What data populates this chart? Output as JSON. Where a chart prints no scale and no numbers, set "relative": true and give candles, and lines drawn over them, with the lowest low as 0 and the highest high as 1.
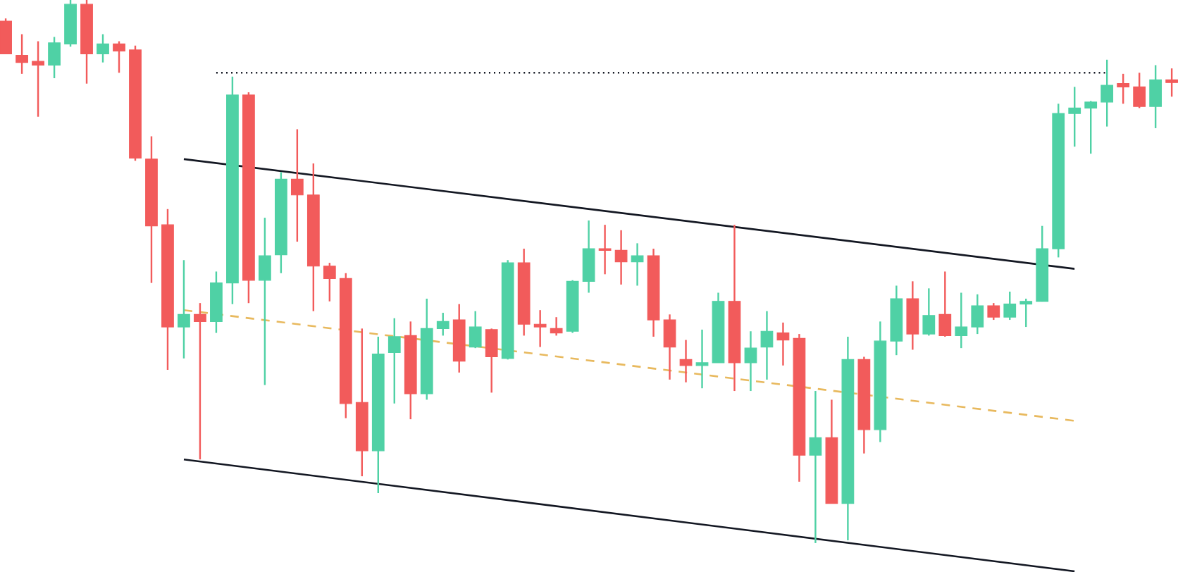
{
  "chart_data": {
    "type": "candlestick",
    "relative": true,
    "categories": [
      null,
      null,
      null,
      null,
      null,
      null,
      null,
      null,
      null,
      null,
      null,
      null,
      null,
      null,
      null,
      null,
      null,
      null,
      null,
      null,
      null,
      null,
      null,
      null,
      null,
      null,
      null,
      null,
      null,
      null,
      null,
      null,
      null,
      null,
      null,
      null,
      null,
      null,
      null,
      null,
      null,
      null,
      null,
      null,
      null,
      null,
      null,
      null,
      null,
      null,
      null,
      null,
      null,
      null,
      null,
      null,
      null,
      null,
      null,
      null,
      null,
      null,
      null,
      null,
      null,
      null,
      null,
      null,
      null,
      null,
      null,
      null,
      null
    ],
    "ohlc": [
      [
        0.961,
        0.966,
        0.901,
        0.901
      ],
      [
        0.898,
        0.937,
        0.864,
        0.885
      ],
      [
        0.887,
        0.924,
        0.785,
        0.88
      ],
      [
        0.88,
        0.932,
        0.856,
        0.921
      ],
      [
        0.919,
        1,
        0.914,
        0.992
      ],
      [
        0.992,
        1,
        0.846,
        0.901
      ],
      [
        0.901,
        0.937,
        0.885,
        0.919
      ],
      [
        0.919,
        0.924,
        0.866,
        0.906
      ],
      [
        0.908,
        0.916,
        0.704,
        0.709
      ],
      [
        0.707,
        0.749,
        0.479,
        0.584
      ],
      [
        0.586,
        0.615,
        0.319,
        0.398
      ],
      [
        0.398,
        0.521,
        0.34,
        0.421
      ],
      [
        0.421,
        0.442,
        0.154,
        0.408
      ],
      [
        0.408,
        0.5,
        0.387,
        0.479
      ],
      [
        0.479,
        0.859,
        0.44,
        0.825
      ],
      [
        0.825,
        0.83,
        0.442,
        0.484
      ],
      [
        0.484,
        0.599,
        0.291,
        0.529
      ],
      [
        0.531,
        0.683,
        0.497,
        0.67
      ],
      [
        0.67,
        0.762,
        0.555,
        0.641
      ],
      [
        0.641,
        0.699,
        0.427,
        0.51
      ],
      [
        0.51,
        0.516,
        0.445,
        0.487
      ],
      [
        0.487,
        0.497,
        0.23,
        0.257
      ],
      [
        0.259,
        0.395,
        0.123,
        0.17
      ],
      [
        0.17,
        0.38,
        0.092,
        0.348
      ],
      [
        0.351,
        0.414,
        0.257,
        0.38
      ],
      [
        0.382,
        0.408,
        0.228,
        0.275
      ],
      [
        0.275,
        0.45,
        0.264,
        0.395
      ],
      [
        0.395,
        0.424,
        0.382,
        0.408
      ],
      [
        0.411,
        0.44,
        0.314,
        0.335
      ],
      [
        0.361,
        0.427,
        0.359,
        0.398
      ],
      [
        0.393,
        0.395,
        0.277,
        0.343
      ],
      [
        0.34,
        0.521,
        0.338,
        0.516
      ],
      [
        0.516,
        0.542,
        0.382,
        0.403
      ],
      [
        0.403,
        0.429,
        0.361,
        0.398
      ],
      [
        0.395,
        0.416,
        0.382,
        0.387
      ],
      [
        0.39,
        0.484,
        0.387,
        0.482
      ],
      [
        0.482,
        0.594,
        0.461,
        0.542
      ],
      [
        0.542,
        0.586,
        0.495,
        0.539
      ],
      [
        0.539,
        0.576,
        0.476,
        0.518
      ],
      [
        0.518,
        0.552,
        0.474,
        0.529
      ],
      [
        0.529,
        0.542,
        0.38,
        0.411
      ],
      [
        0.411,
        0.421,
        0.301,
        0.361
      ],
      [
        0.338,
        0.374,
        0.296,
        0.327
      ],
      [
        0.327,
        0.393,
        0.285,
        0.332
      ],
      [
        0.332,
        0.461,
        0.332,
        0.445
      ],
      [
        0.445,
        0.586,
        0.28,
        0.332
      ],
      [
        0.332,
        0.39,
        0.28,
        0.359
      ],
      [
        0.361,
        0.427,
        0.301,
        0.39
      ],
      [
        0.387,
        0.406,
        0.327,
        0.374
      ],
      [
        0.377,
        0.385,
        0.113,
        0.162
      ],
      [
        0.162,
        0.28,
        0,
        0.194
      ],
      [
        0.194,
        0.264,
        0.073,
        0.073
      ],
      [
        0.073,
        0.38,
        0.005,
        0.338
      ],
      [
        0.338,
        0.343,
        0.165,
        0.209
      ],
      [
        0.209,
        0.408,
        0.186,
        0.372
      ],
      [
        0.372,
        0.474,
        0.346,
        0.45
      ],
      [
        0.45,
        0.482,
        0.356,
        0.385
      ],
      [
        0.385,
        0.469,
        0.382,
        0.419
      ],
      [
        0.421,
        0.5,
        0.38,
        0.382
      ],
      [
        0.382,
        0.461,
        0.359,
        0.398
      ],
      [
        0.398,
        0.458,
        0.385,
        0.437
      ],
      [
        0.437,
        0.442,
        0.411,
        0.416
      ],
      [
        0.416,
        0.463,
        0.411,
        0.44
      ],
      [
        0.44,
        0.45,
        0.398,
        0.445
      ],
      [
        0.445,
        0.584,
        0.445,
        0.542
      ],
      [
        0.542,
        0.809,
        0.526,
        0.791
      ],
      [
        0.791,
        0.84,
        0.73,
        0.801
      ],
      [
        0.801,
        0.814,
        0.717,
        0.812
      ],
      [
        0.812,
        0.89,
        0.767,
        0.843
      ],
      [
        0.846,
        0.864,
        0.809,
        0.84
      ],
      [
        0.84,
        0.866,
        0.801,
        0.804
      ],
      [
        0.804,
        0.88,
        0.764,
        0.853
      ],
      [
        0.853,
        0.874,
        0.822,
        0.848
      ]
    ],
    "colors": [
      "#f25b5b",
      "#f25b5b",
      "#f25b5b",
      "#4fd1a5",
      "#4fd1a5",
      "#f25b5b",
      "#4fd1a5",
      "#f25b5b",
      "#f25b5b",
      "#f25b5b",
      "#f25b5b",
      "#4fd1a5",
      "#f25b5b",
      "#4fd1a5",
      "#4fd1a5",
      "#f25b5b",
      "#4fd1a5",
      "#4fd1a5",
      "#f25b5b",
      "#f25b5b",
      "#f25b5b",
      "#f25b5b",
      "#f25b5b",
      "#4fd1a5",
      "#4fd1a5",
      "#f25b5b",
      "#4fd1a5",
      "#4fd1a5",
      "#f25b5b",
      "#4fd1a5",
      "#f25b5b",
      "#4fd1a5",
      "#f25b5b",
      "#f25b5b",
      "#f25b5b",
      "#4fd1a5",
      "#4fd1a5",
      "#f25b5b",
      "#f25b5b",
      "#4fd1a5",
      "#f25b5b",
      "#f25b5b",
      "#f25b5b",
      "#4fd1a5",
      "#4fd1a5",
      "#f25b5b",
      "#4fd1a5",
      "#4fd1a5",
      "#f25b5b",
      "#f25b5b",
      "#4fd1a5",
      "#f25b5b",
      "#4fd1a5",
      "#f25b5b",
      "#4fd1a5",
      "#4fd1a5",
      "#f25b5b",
      "#4fd1a5",
      "#f25b5b",
      "#4fd1a5",
      "#4fd1a5",
      "#f25b5b",
      "#4fd1a5",
      "#4fd1a5",
      "#4fd1a5",
      "#4fd1a5",
      "#4fd1a5",
      "#4fd1a5",
      "#4fd1a5",
      "#f25b5b",
      "#f25b5b",
      "#4fd1a5",
      "#f25b5b"
    ],
    "series": [
      {
        "type": "line",
        "color": "#131722",
        "line_style": "solid",
        "values": [
          null,
          null,
          null,
          null,
          null,
          null,
          null,
          null,
          null,
          null,
          null,
          0.707,
          null,
          null,
          null,
          null,
          null,
          null,
          null,
          null,
          null,
          null,
          null,
          null,
          null,
          null,
          null,
          null,
          null,
          null,
          null,
          null,
          null,
          null,
          null,
          null,
          null,
          null,
          null,
          null,
          null,
          null,
          null,
          null,
          null,
          null,
          null,
          null,
          null,
          null,
          null,
          null,
          null,
          null,
          null,
          null,
          null,
          null,
          null,
          null,
          null,
          null,
          null,
          null,
          null,
          null,
          0.505,
          null,
          null,
          null,
          null,
          null,
          null
        ]
      },
      {
        "type": "line",
        "color": "#131722",
        "line_style": "solid",
        "values": [
          null,
          null,
          null,
          null,
          null,
          null,
          null,
          null,
          null,
          null,
          null,
          0.154,
          null,
          null,
          null,
          null,
          null,
          null,
          null,
          null,
          null,
          null,
          null,
          null,
          null,
          null,
          null,
          null,
          null,
          null,
          null,
          null,
          null,
          null,
          null,
          null,
          null,
          null,
          null,
          null,
          null,
          null,
          null,
          null,
          null,
          null,
          null,
          null,
          null,
          null,
          null,
          null,
          null,
          null,
          null,
          null,
          null,
          null,
          null,
          null,
          null,
          null,
          null,
          null,
          null,
          null,
          -0.052,
          null,
          null,
          null,
          null,
          null,
          null
        ]
      },
      {
        "type": "line",
        "color": "#e8b95e",
        "line_style": "dashed",
        "values": [
          null,
          null,
          null,
          null,
          null,
          null,
          null,
          null,
          null,
          null,
          null,
          0.429,
          null,
          null,
          null,
          null,
          null,
          null,
          null,
          null,
          null,
          null,
          null,
          null,
          null,
          null,
          null,
          null,
          null,
          null,
          null,
          null,
          null,
          null,
          null,
          null,
          null,
          null,
          null,
          null,
          null,
          null,
          null,
          null,
          null,
          null,
          null,
          null,
          null,
          null,
          null,
          null,
          null,
          null,
          null,
          null,
          null,
          null,
          null,
          null,
          null,
          null,
          null,
          null,
          null,
          null,
          0.225,
          null,
          null,
          null,
          null,
          null,
          null
        ]
      },
      {
        "type": "line",
        "color": "#131722",
        "line_style": "dotted",
        "values": [
          null,
          null,
          null,
          null,
          null,
          null,
          null,
          null,
          null,
          null,
          null,
          null,
          null,
          0.866,
          null,
          null,
          null,
          null,
          null,
          null,
          null,
          null,
          null,
          null,
          null,
          null,
          null,
          null,
          null,
          null,
          null,
          null,
          null,
          null,
          null,
          null,
          null,
          null,
          null,
          null,
          null,
          null,
          null,
          null,
          null,
          null,
          null,
          null,
          null,
          null,
          null,
          null,
          null,
          null,
          null,
          null,
          null,
          null,
          null,
          null,
          null,
          null,
          null,
          null,
          null,
          null,
          null,
          null,
          0.866,
          null,
          null,
          null,
          null
        ]
      }
    ]
  }
}
